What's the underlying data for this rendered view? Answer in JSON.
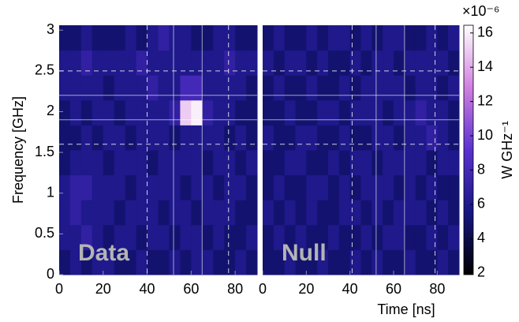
{
  "chart_data": [
    {
      "type": "heatmap",
      "label": "Data",
      "ylabel": "Frequency [GHz]",
      "xlim": [
        0,
        90
      ],
      "ylim": [
        0,
        3.06
      ],
      "xticks": [
        0,
        20,
        40,
        60,
        80
      ],
      "yticks": [
        0,
        0.5,
        1,
        1.5,
        2,
        2.5,
        3
      ],
      "xbins": [
        0,
        5,
        10,
        15,
        20,
        25,
        30,
        35,
        40,
        45,
        50,
        55,
        60,
        65,
        70,
        75,
        80,
        85,
        90
      ],
      "ybins": [
        0,
        0.306,
        0.612,
        0.918,
        1.224,
        1.53,
        1.836,
        2.142,
        2.448,
        2.754,
        3.06
      ],
      "values": [
        [
          5,
          6,
          5,
          6,
          6,
          5,
          5,
          6,
          5,
          5,
          6,
          5,
          6,
          6,
          5,
          5,
          6,
          5
        ],
        [
          6,
          6,
          7,
          6,
          5,
          6,
          6,
          5,
          6,
          6,
          5,
          6,
          6,
          5,
          6,
          5,
          5,
          6
        ],
        [
          6,
          7,
          6,
          6,
          6,
          5,
          6,
          6,
          6,
          5,
          6,
          6,
          5,
          6,
          6,
          6,
          5,
          5
        ],
        [
          6,
          7,
          7,
          6,
          6,
          6,
          5,
          6,
          6,
          6,
          6,
          5,
          6,
          6,
          5,
          6,
          6,
          5
        ],
        [
          5,
          6,
          6,
          6,
          5,
          6,
          6,
          6,
          5,
          6,
          6,
          6,
          6,
          5,
          6,
          6,
          5,
          6
        ],
        [
          5,
          5,
          6,
          5,
          6,
          6,
          5,
          6,
          6,
          6,
          5,
          6,
          6,
          6,
          6,
          5,
          6,
          5
        ],
        [
          5,
          6,
          5,
          6,
          6,
          5,
          6,
          6,
          6,
          6,
          7,
          15,
          16,
          7,
          6,
          6,
          5,
          5
        ],
        [
          6,
          6,
          6,
          6,
          5,
          6,
          6,
          6,
          7,
          6,
          6,
          8,
          8,
          6,
          6,
          6,
          6,
          5
        ],
        [
          6,
          6,
          7,
          6,
          6,
          6,
          6,
          7,
          6,
          6,
          6,
          6,
          6,
          6,
          6,
          7,
          6,
          6
        ],
        [
          5,
          5,
          6,
          5,
          5,
          5,
          6,
          5,
          6,
          7,
          6,
          6,
          5,
          5,
          6,
          6,
          5,
          5
        ]
      ],
      "solid_x": [
        52,
        65
      ],
      "dashed_x": [
        40,
        77
      ],
      "solid_y": [
        1.9,
        2.2
      ],
      "dashed_y": [
        1.6,
        2.5
      ]
    },
    {
      "type": "heatmap",
      "label": "Null",
      "xlabel": "Time [ns]",
      "xlim": [
        0,
        90
      ],
      "ylim": [
        0,
        3.06
      ],
      "xticks": [
        0,
        20,
        40,
        60,
        80
      ],
      "xbins": [
        0,
        5,
        10,
        15,
        20,
        25,
        30,
        35,
        40,
        45,
        50,
        55,
        60,
        65,
        70,
        75,
        80,
        85,
        90
      ],
      "ybins": [
        0,
        0.306,
        0.612,
        0.918,
        1.224,
        1.53,
        1.836,
        2.142,
        2.448,
        2.754,
        3.06
      ],
      "values": [
        [
          5,
          5,
          6,
          5,
          5,
          6,
          5,
          5,
          6,
          5,
          6,
          5,
          5,
          6,
          5,
          5,
          6,
          5
        ],
        [
          5,
          6,
          5,
          6,
          5,
          5,
          6,
          5,
          5,
          6,
          5,
          6,
          6,
          5,
          5,
          6,
          5,
          6
        ],
        [
          6,
          5,
          6,
          5,
          6,
          5,
          5,
          6,
          6,
          5,
          6,
          5,
          6,
          6,
          6,
          5,
          6,
          5
        ],
        [
          5,
          6,
          5,
          5,
          6,
          6,
          5,
          6,
          5,
          6,
          6,
          6,
          5,
          6,
          5,
          6,
          5,
          5
        ],
        [
          5,
          5,
          6,
          6,
          5,
          5,
          6,
          5,
          6,
          6,
          5,
          6,
          6,
          6,
          6,
          5,
          6,
          6
        ],
        [
          6,
          5,
          5,
          6,
          6,
          5,
          5,
          6,
          5,
          5,
          6,
          6,
          5,
          6,
          6,
          7,
          6,
          5
        ],
        [
          5,
          5,
          6,
          5,
          5,
          6,
          6,
          5,
          6,
          6,
          6,
          5,
          6,
          6,
          7,
          6,
          6,
          5
        ],
        [
          5,
          6,
          5,
          5,
          6,
          5,
          5,
          6,
          5,
          6,
          6,
          6,
          6,
          5,
          6,
          6,
          5,
          6
        ],
        [
          6,
          5,
          6,
          6,
          5,
          6,
          5,
          5,
          6,
          5,
          6,
          6,
          5,
          6,
          6,
          6,
          6,
          5
        ],
        [
          5,
          6,
          5,
          5,
          6,
          5,
          6,
          6,
          5,
          6,
          5,
          6,
          6,
          5,
          5,
          6,
          5,
          6
        ]
      ],
      "solid_x": [
        52,
        65
      ],
      "dashed_x": [
        41,
        79
      ],
      "solid_y": [
        1.9,
        2.2
      ],
      "dashed_y": [
        1.6,
        2.5
      ]
    },
    {
      "type": "colorbar",
      "label": "W GHz⁻¹",
      "multiplier": "×10⁻⁶",
      "ylim": [
        1.9,
        16.45
      ],
      "yticks": [
        2,
        4,
        6,
        8,
        10,
        12,
        14,
        16
      ],
      "colors": [
        "#000000",
        "#161682",
        "#5a30d0",
        "#d080e0",
        "#ffffff"
      ]
    }
  ]
}
